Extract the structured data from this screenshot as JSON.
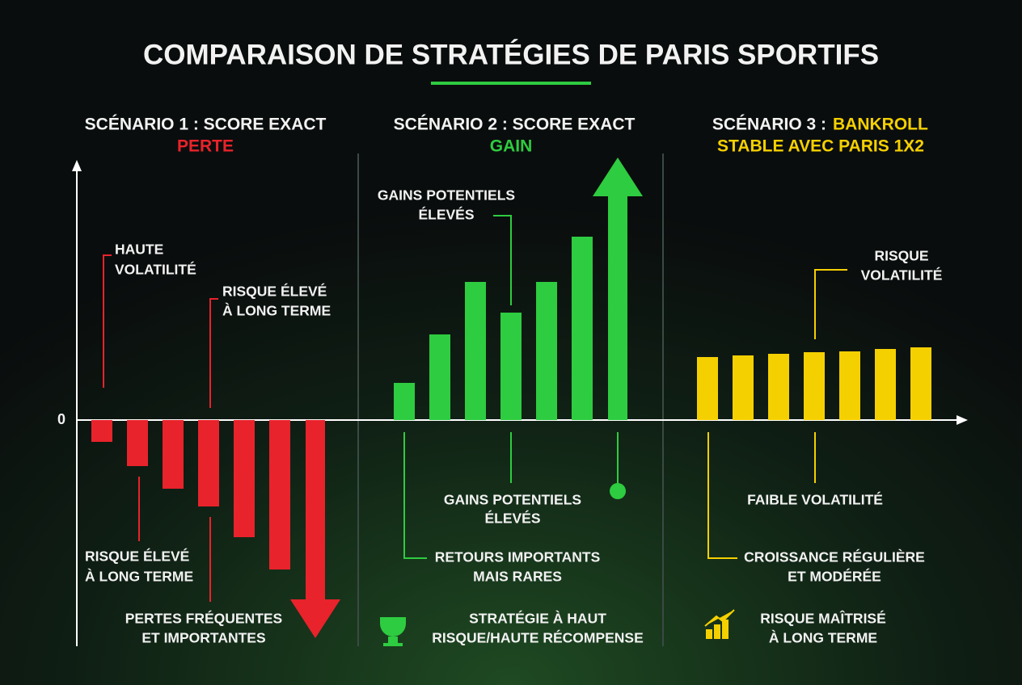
{
  "chart_data": {
    "type": "bar",
    "title": "COMPARAISON DE STRATÉGIES DE PARIS SPORTIFS",
    "ylim": [
      -14,
      17
    ],
    "yticks": [
      0
    ],
    "series": [
      {
        "name": "SCÉNARIO 1 : SCORE EXACT",
        "subtitle": [
          "PERTE"
        ],
        "color": "#e8232b",
        "values": [
          -1.35,
          -2.85,
          -4.25,
          -5.35,
          -7.25,
          -9.25,
          -13.5
        ],
        "annotations": [
          [
            "HAUTE",
            "VOLATILITÉ"
          ],
          [
            "RISQUE ÉLEVÉ",
            "À LONG TERME"
          ],
          [
            "RISQUE ÉLEVÉ",
            "À LONG TERME"
          ],
          [
            "PERTES FRÉQUENTES",
            "ET IMPORTANTES"
          ]
        ]
      },
      {
        "name": "SCÉNARIO 2 : SCORE EXACT",
        "subtitle": [
          "GAIN"
        ],
        "color": "#2ecc40",
        "values": [
          2.3,
          5.3,
          8.55,
          6.65,
          8.55,
          11.35,
          16.25
        ],
        "annotations": [
          [
            "GAINS POTENTIELS",
            "ÉLEVÉS"
          ],
          [
            "GAINS POTENTIELS",
            "ÉLEVÉS"
          ],
          [
            "RETOURS IMPORTANTS",
            "MAIS RARES"
          ],
          [
            "STRATÉGIE À HAUT",
            "RISQUE/HAUTE RÉCOMPENSE"
          ]
        ]
      },
      {
        "name": "SCÉNARIO 3 :",
        "subtitle": [
          "BANKROLL",
          "STABLE AVEC PARIS 1X2"
        ],
        "color": "#f5d000",
        "values": [
          3.9,
          4.0,
          4.1,
          4.2,
          4.25,
          4.4,
          4.5
        ],
        "annotations": [
          [
            "RISQUE",
            "VOLATILITÉ"
          ],
          [
            "FAIBLE VOLATILITÉ"
          ],
          [
            "CROISSANCE RÉGULIÈRE",
            "ET MODÉRÉE"
          ],
          [
            "RISQUE MAÎTRISÉ",
            "À LONG TERME"
          ]
        ]
      }
    ]
  }
}
